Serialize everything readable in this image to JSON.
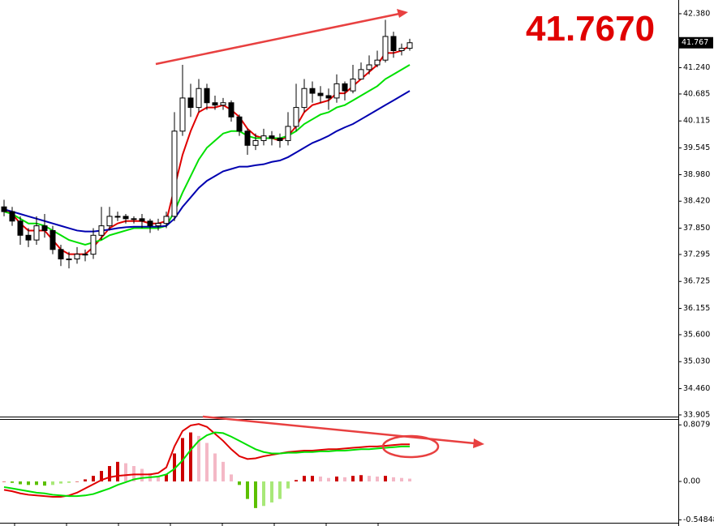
{
  "chart_data": [
    {
      "type": "candlestick",
      "annotation": "41.7670",
      "current_price": {
        "value": 41.767,
        "label": "41.767"
      },
      "categories": [
        null,
        null,
        null,
        null,
        null,
        null,
        null,
        null,
        null,
        null,
        null,
        null,
        null,
        null,
        null,
        null,
        null,
        null,
        null,
        null,
        null,
        null,
        null,
        null,
        null,
        null,
        null,
        null,
        null,
        null,
        null,
        null,
        null,
        null,
        null,
        null,
        null,
        null,
        null,
        null,
        null,
        null,
        null,
        null,
        null,
        null,
        null,
        null,
        null,
        null,
        null
      ],
      "open": [
        38.3,
        38.2,
        38.0,
        37.7,
        37.6,
        37.9,
        37.8,
        37.4,
        37.2,
        37.2,
        37.3,
        37.3,
        37.7,
        37.9,
        38.1,
        38.1,
        38.05,
        38.05,
        38.0,
        37.9,
        37.95,
        38.1,
        39.9,
        40.6,
        40.4,
        40.8,
        40.5,
        40.45,
        40.5,
        40.2,
        39.9,
        39.6,
        39.7,
        39.8,
        39.75,
        39.7,
        40.0,
        40.4,
        40.8,
        40.7,
        40.65,
        40.6,
        40.9,
        40.75,
        41.0,
        41.2,
        41.3,
        41.4,
        41.9,
        41.6,
        41.65
      ],
      "high": [
        38.45,
        38.3,
        38.1,
        37.85,
        38.1,
        38.15,
        37.9,
        37.5,
        37.35,
        37.45,
        37.4,
        37.85,
        38.3,
        38.3,
        38.2,
        38.15,
        38.1,
        38.15,
        38.05,
        38.05,
        38.2,
        40.3,
        41.3,
        40.9,
        41.0,
        40.9,
        40.65,
        40.6,
        40.55,
        40.25,
        39.95,
        39.85,
        39.95,
        39.9,
        39.85,
        40.3,
        40.9,
        41.0,
        40.95,
        40.85,
        40.8,
        41.1,
        40.95,
        41.3,
        41.35,
        41.5,
        41.6,
        42.25,
        42.0,
        41.75,
        41.85
      ],
      "low": [
        38.1,
        37.9,
        37.5,
        37.45,
        37.5,
        37.65,
        37.3,
        37.05,
        37.0,
        37.1,
        37.15,
        37.2,
        37.6,
        37.8,
        38.0,
        37.95,
        37.95,
        37.85,
        37.75,
        37.8,
        37.85,
        38.0,
        39.8,
        40.2,
        40.3,
        40.35,
        40.35,
        40.35,
        40.1,
        39.8,
        39.4,
        39.5,
        39.6,
        39.6,
        39.55,
        39.6,
        39.9,
        40.3,
        40.5,
        40.5,
        40.35,
        40.5,
        40.55,
        40.7,
        41.0,
        41.1,
        41.25,
        41.35,
        41.45,
        41.5,
        41.6
      ],
      "close": [
        38.2,
        38.0,
        37.7,
        37.6,
        37.9,
        37.8,
        37.4,
        37.2,
        37.2,
        37.3,
        37.3,
        37.7,
        37.9,
        38.1,
        38.1,
        38.05,
        38.05,
        38.0,
        37.9,
        37.95,
        38.1,
        39.9,
        40.6,
        40.4,
        40.8,
        40.5,
        40.45,
        40.5,
        40.2,
        39.9,
        39.6,
        39.7,
        39.8,
        39.75,
        39.7,
        40.0,
        40.4,
        40.8,
        40.7,
        40.65,
        40.6,
        40.9,
        40.75,
        41.0,
        41.2,
        41.3,
        41.4,
        41.9,
        41.6,
        41.65,
        41.767
      ],
      "up_color": "#ffffff",
      "down_color": "#000000",
      "series": [
        {
          "color": "#e00000",
          "values": [
            38.25,
            38.15,
            37.95,
            37.8,
            37.8,
            37.8,
            37.6,
            37.4,
            37.3,
            37.3,
            37.3,
            37.45,
            37.65,
            37.85,
            37.95,
            38.0,
            38.0,
            38.0,
            37.95,
            37.95,
            38.0,
            38.7,
            39.4,
            39.9,
            40.3,
            40.4,
            40.4,
            40.45,
            40.35,
            40.2,
            39.95,
            39.8,
            39.75,
            39.75,
            39.7,
            39.8,
            40.0,
            40.3,
            40.45,
            40.5,
            40.55,
            40.7,
            40.7,
            40.85,
            41.0,
            41.15,
            41.3,
            41.55,
            41.55,
            41.6,
            41.7
          ]
        },
        {
          "color": "#00e000",
          "values": [
            38.2,
            38.15,
            38.05,
            37.95,
            37.95,
            37.9,
            37.8,
            37.7,
            37.6,
            37.55,
            37.5,
            37.55,
            37.6,
            37.7,
            37.75,
            37.8,
            37.85,
            37.85,
            37.85,
            37.85,
            37.9,
            38.2,
            38.6,
            38.95,
            39.3,
            39.55,
            39.7,
            39.85,
            39.9,
            39.9,
            39.8,
            39.75,
            39.75,
            39.75,
            39.75,
            39.8,
            39.9,
            40.05,
            40.15,
            40.25,
            40.3,
            40.4,
            40.45,
            40.55,
            40.65,
            40.75,
            40.85,
            41.0,
            41.1,
            41.2,
            41.3
          ]
        },
        {
          "color": "#0000b0",
          "values": [
            38.25,
            38.2,
            38.15,
            38.1,
            38.05,
            38.0,
            37.95,
            37.9,
            37.85,
            37.8,
            37.78,
            37.78,
            37.8,
            37.82,
            37.85,
            37.87,
            37.88,
            37.88,
            37.88,
            37.88,
            37.9,
            38.05,
            38.3,
            38.5,
            38.7,
            38.85,
            38.95,
            39.05,
            39.1,
            39.15,
            39.15,
            39.18,
            39.2,
            39.25,
            39.28,
            39.35,
            39.45,
            39.55,
            39.65,
            39.72,
            39.8,
            39.9,
            39.98,
            40.05,
            40.15,
            40.25,
            40.35,
            40.45,
            40.55,
            40.65,
            40.75
          ]
        }
      ],
      "ylim": [
        33.87,
        42.67
      ],
      "yticks": [
        {
          "value": 42.38,
          "label": "42.380"
        },
        {
          "value": 41.24,
          "label": "41.240"
        },
        40.685,
        40.115,
        39.545,
        {
          "value": 38.98,
          "label": "38.980"
        },
        {
          "value": 38.42,
          "label": "38.420"
        },
        {
          "value": 37.85,
          "label": "37.850"
        },
        37.295,
        36.725,
        36.155,
        {
          "value": 35.6,
          "label": "35.600"
        },
        {
          "value": 35.03,
          "label": "35.030"
        },
        {
          "value": 34.46,
          "label": "34.460"
        },
        33.905
      ]
    },
    {
      "type": "macd",
      "categories": [
        null,
        null,
        null,
        null,
        null,
        null,
        null,
        null,
        null,
        null,
        null,
        null,
        null,
        null,
        null,
        null,
        null,
        null,
        null,
        null,
        null,
        null,
        null,
        null,
        null,
        null,
        null,
        null,
        null,
        null,
        null,
        null,
        null,
        null,
        null,
        null,
        null,
        null,
        null,
        null,
        null,
        null,
        null,
        null,
        null,
        null,
        null,
        null,
        null,
        null,
        null
      ],
      "values": [
        0.0,
        -0.02,
        -0.04,
        -0.05,
        -0.05,
        -0.06,
        -0.05,
        -0.03,
        -0.02,
        0.0,
        0.03,
        0.08,
        0.15,
        0.22,
        0.28,
        0.26,
        0.22,
        0.18,
        0.12,
        0.08,
        0.1,
        0.4,
        0.62,
        0.7,
        0.65,
        0.55,
        0.4,
        0.28,
        0.1,
        -0.05,
        -0.25,
        -0.38,
        -0.35,
        -0.3,
        -0.25,
        -0.1,
        0.02,
        0.08,
        0.08,
        0.07,
        0.05,
        0.07,
        0.06,
        0.08,
        0.09,
        0.08,
        0.07,
        0.08,
        0.06,
        0.05,
        0.04
      ],
      "bar_colors": {
        "pos_up": "#cc0000",
        "pos_down": "#f4b8c6",
        "neg_down": "#5cc000",
        "neg_up": "#a8e878"
      },
      "series": [
        {
          "color": "#e00000",
          "values": [
            -0.12,
            -0.14,
            -0.17,
            -0.19,
            -0.2,
            -0.21,
            -0.22,
            -0.22,
            -0.2,
            -0.16,
            -0.1,
            -0.04,
            0.02,
            0.06,
            0.08,
            0.09,
            0.1,
            0.1,
            0.1,
            0.12,
            0.2,
            0.5,
            0.72,
            0.8,
            0.82,
            0.78,
            0.68,
            0.58,
            0.46,
            0.36,
            0.32,
            0.33,
            0.36,
            0.38,
            0.4,
            0.42,
            0.43,
            0.44,
            0.44,
            0.45,
            0.46,
            0.46,
            0.47,
            0.48,
            0.49,
            0.5,
            0.5,
            0.51,
            0.52,
            0.53,
            0.53
          ]
        },
        {
          "color": "#00e000",
          "values": [
            -0.08,
            -0.1,
            -0.12,
            -0.14,
            -0.16,
            -0.17,
            -0.19,
            -0.2,
            -0.21,
            -0.21,
            -0.2,
            -0.18,
            -0.14,
            -0.1,
            -0.05,
            -0.01,
            0.03,
            0.05,
            0.06,
            0.07,
            0.1,
            0.18,
            0.3,
            0.45,
            0.58,
            0.66,
            0.7,
            0.69,
            0.64,
            0.58,
            0.52,
            0.46,
            0.42,
            0.4,
            0.4,
            0.41,
            0.41,
            0.42,
            0.42,
            0.43,
            0.43,
            0.44,
            0.44,
            0.45,
            0.46,
            0.46,
            0.47,
            0.48,
            0.49,
            0.5,
            0.5
          ]
        }
      ],
      "ylim": [
        -0.59,
        0.88
      ],
      "yticks": [
        0.8079,
        {
          "value": 0,
          "label": "0.00"
        },
        -0.54848
      ]
    }
  ]
}
